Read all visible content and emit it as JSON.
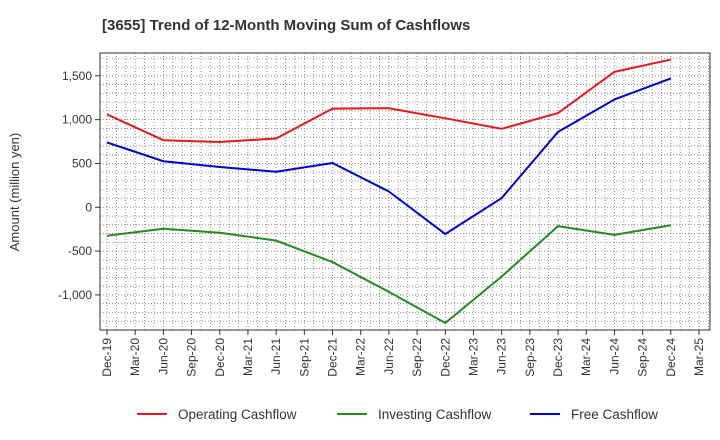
{
  "chart_data": {
    "type": "line",
    "title": "[3655]  Trend of 12-Month Moving Sum of Cashflows",
    "xlabel": "",
    "ylabel": "Amount (million yen)",
    "x_ticks": [
      "Dec-19",
      "Mar-20",
      "Jun-20",
      "Sep-20",
      "Dec-20",
      "Mar-21",
      "Jun-21",
      "Sep-21",
      "Dec-21",
      "Mar-22",
      "Jun-22",
      "Sep-22",
      "Dec-22",
      "Mar-23",
      "Jun-23",
      "Sep-23",
      "Dec-23",
      "Mar-24",
      "Jun-24",
      "Sep-24",
      "Dec-24",
      "Mar-25"
    ],
    "y_ticks": [
      1500,
      1000,
      500,
      0,
      -500,
      -1000
    ],
    "y_tick_labels": [
      "1,500",
      "1,000",
      "500",
      "0",
      "-500",
      "-1,000"
    ],
    "ylim": [
      -1400,
      1760
    ],
    "grid": true,
    "legend_position": "bottom",
    "x": [
      "Dec-19",
      "Jun-20",
      "Dec-20",
      "Jun-21",
      "Dec-21",
      "Jun-22",
      "Dec-22",
      "Jun-23",
      "Dec-23",
      "Jun-24",
      "Dec-24"
    ],
    "series": [
      {
        "name": "Operating Cashflow",
        "color": "#e31a1c",
        "values": [
          1060,
          765,
          745,
          785,
          1125,
          1130,
          1015,
          895,
          1075,
          1545,
          1685
        ]
      },
      {
        "name": "Investing Cashflow",
        "color": "#228b22",
        "values": [
          -325,
          -245,
          -290,
          -380,
          -625,
          -965,
          -1320,
          -790,
          -215,
          -315,
          -205
        ]
      },
      {
        "name": "Free Cashflow",
        "color": "#0000cd",
        "values": [
          740,
          525,
          460,
          405,
          505,
          180,
          -305,
          105,
          860,
          1230,
          1470
        ]
      }
    ]
  }
}
